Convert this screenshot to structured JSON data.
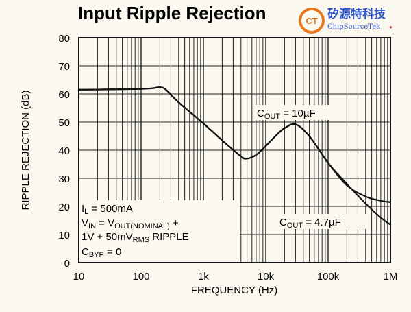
{
  "chart_data": {
    "type": "line",
    "title": "Input Ripple Rejection",
    "xlabel": "FREQUENCY (Hz)",
    "ylabel": "RIPPLE REJECTION (dB)",
    "x_scale": "log",
    "xlim": [
      10,
      1000000
    ],
    "ylim": [
      0,
      80
    ],
    "x_ticks": [
      10,
      100,
      1000,
      10000,
      100000,
      1000000
    ],
    "x_tick_labels": [
      "10",
      "100",
      "1k",
      "10k",
      "100k",
      "1M"
    ],
    "y_ticks": [
      0,
      10,
      20,
      30,
      40,
      50,
      60,
      70,
      80
    ],
    "y_tick_labels": [
      "0",
      "10",
      "20",
      "30",
      "40",
      "50",
      "60",
      "70",
      "80"
    ],
    "grid": true,
    "series": [
      {
        "name": "COUT = 10µF",
        "x": [
          10,
          30,
          100,
          150,
          200,
          250,
          400,
          1000,
          2000,
          4000,
          5000,
          7000,
          10000,
          15000,
          20000,
          30000,
          50000,
          100000,
          200000,
          400000,
          700000,
          1000000
        ],
        "y": [
          61.5,
          61.6,
          61.8,
          62,
          62.4,
          61.5,
          57,
          49.5,
          43.5,
          37.8,
          37,
          38.3,
          41.5,
          45.5,
          47.8,
          49.2,
          45,
          35.5,
          27.5,
          23.5,
          22,
          21.5
        ]
      },
      {
        "name": "COUT = 4.7µF",
        "x": [
          10,
          30,
          100,
          150,
          200,
          250,
          400,
          1000,
          2000,
          4000,
          5000,
          7000,
          10000,
          15000,
          20000,
          30000,
          50000,
          100000,
          200000,
          400000,
          700000,
          1000000
        ],
        "y": [
          61.5,
          61.6,
          61.8,
          62,
          62.4,
          61.5,
          57,
          49.5,
          43.5,
          37.8,
          37,
          38.3,
          41.5,
          45.5,
          47.8,
          49.2,
          45,
          35.5,
          28,
          21,
          16,
          13.5
        ]
      }
    ],
    "annotations": {
      "cout_10": {
        "main": "C",
        "sub": "OUT",
        "rest": " = 10µF"
      },
      "cout_47": {
        "main": "C",
        "sub": "OUT",
        "rest": " = 4.7µF"
      },
      "il": {
        "main": "I",
        "sub": "L",
        "rest": " = 500mA"
      },
      "vin": {
        "a": "V",
        "a_sub": "IN",
        "b": " = V",
        "b_sub": "OUT(NOMINAL)",
        "c": " +"
      },
      "ripple": {
        "a": "1V + 50mV",
        "a_sub": "RMS",
        "b": " RIPPLE"
      },
      "cbyp": {
        "main": "C",
        "sub": "BYP",
        "rest": " = 0"
      }
    }
  },
  "logo": {
    "name_cn": "矽源特科技",
    "name_en": "ChipSourceTek",
    "mark": "CT",
    "accent": "#e8781e",
    "brand_color": "#2d55c8"
  }
}
